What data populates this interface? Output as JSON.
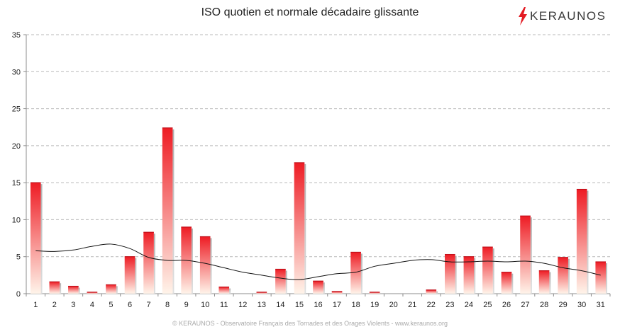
{
  "title": "ISO quotien et normale décadaire glissante",
  "logo": {
    "text": "KERAUNOS",
    "icon": "lightning-bolt-icon",
    "color": "#e31b23"
  },
  "footer": "© KERAUNOS - Observatoire Français des Tornades et des Orages Violents - www.keraunos.org",
  "chart_data": {
    "type": "bar",
    "categories": [
      "1",
      "2",
      "3",
      "4",
      "5",
      "6",
      "7",
      "8",
      "9",
      "10",
      "11",
      "12",
      "13",
      "14",
      "15",
      "16",
      "17",
      "18",
      "19",
      "20",
      "21",
      "22",
      "23",
      "24",
      "25",
      "26",
      "27",
      "28",
      "29",
      "30",
      "31"
    ],
    "series": [
      {
        "kind": "bar",
        "values": [
          15.0,
          1.6,
          1.0,
          0.2,
          1.2,
          5.0,
          8.3,
          22.4,
          9.0,
          7.7,
          0.9,
          0.0,
          0.2,
          3.3,
          17.7,
          1.7,
          0.3,
          5.6,
          0.2,
          0.0,
          0.0,
          0.5,
          5.3,
          5.0,
          6.3,
          2.9,
          10.5,
          3.1,
          4.9,
          14.1,
          4.3
        ],
        "color_top": "#ee1c24",
        "color_bottom": "#fff4ea"
      },
      {
        "kind": "line",
        "values": [
          5.8,
          5.7,
          5.9,
          6.4,
          6.7,
          6.1,
          4.9,
          4.5,
          4.5,
          4.1,
          3.5,
          2.9,
          2.5,
          2.1,
          1.9,
          2.3,
          2.7,
          2.9,
          3.7,
          4.1,
          4.5,
          4.6,
          4.3,
          4.3,
          4.4,
          4.3,
          4.4,
          4.1,
          3.5,
          3.1,
          2.5
        ],
        "color": "#111111"
      }
    ],
    "ylim": [
      0,
      35
    ],
    "yticks": [
      0,
      5,
      10,
      15,
      20,
      25,
      30,
      35
    ],
    "grid": true,
    "legend": "none",
    "xlabel": "",
    "ylabel": ""
  }
}
